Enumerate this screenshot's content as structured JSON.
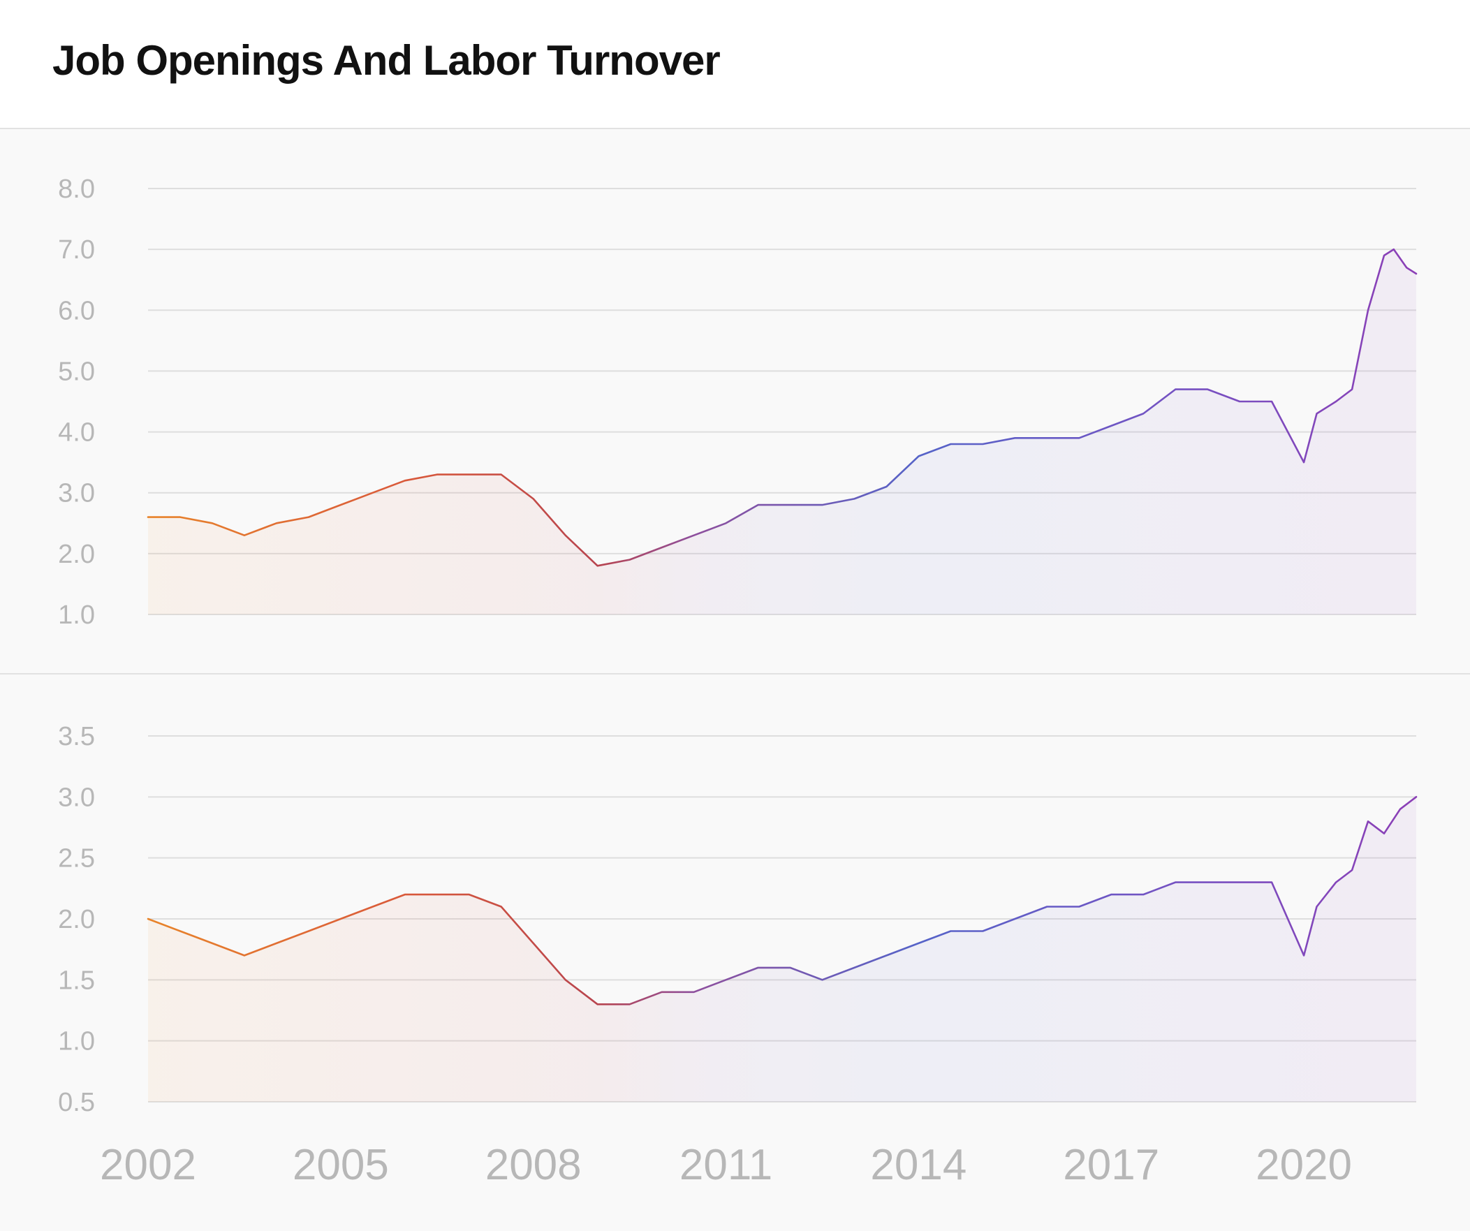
{
  "header": {
    "title": "Job Openings And Labor Turnover"
  },
  "colors": {
    "grid": "#dedede",
    "tick_text": "#b7b7b7",
    "gradient_stops": [
      {
        "year": 2002,
        "color": "#e8842a"
      },
      {
        "year": 2006,
        "color": "#d9593a"
      },
      {
        "year": 2009,
        "color": "#b8444e"
      },
      {
        "year": 2010.5,
        "color": "#8e4f9d"
      },
      {
        "year": 2014,
        "color": "#5563c8"
      },
      {
        "year": 2018,
        "color": "#7552c2"
      },
      {
        "year": 2021.7,
        "color": "#8b3fb6"
      }
    ]
  },
  "chart_data": [
    {
      "type": "line",
      "title": "",
      "xlabel": "",
      "ylabel": "",
      "xlim": [
        2002,
        2021.75
      ],
      "ylim": [
        1.0,
        8.0
      ],
      "yticks": [
        "8.0",
        "7.0",
        "6.0",
        "5.0",
        "4.0",
        "3.0",
        "2.0",
        "1.0"
      ],
      "grid": true,
      "area_fill": true,
      "series": [
        {
          "x": [
            2002,
            2002.5,
            2003,
            2003.5,
            2004,
            2004.5,
            2005,
            2005.5,
            2006,
            2006.5,
            2007,
            2007.5,
            2008,
            2008.5,
            2009,
            2009.5,
            2010,
            2010.5,
            2011,
            2011.5,
            2012,
            2012.5,
            2013,
            2013.5,
            2014,
            2014.5,
            2015,
            2015.5,
            2016,
            2016.5,
            2017,
            2017.5,
            2018,
            2018.5,
            2019,
            2019.5,
            2020,
            2020.2,
            2020.5,
            2020.75,
            2021,
            2021.25,
            2021.4,
            2021.6,
            2021.75
          ],
          "values": [
            2.6,
            2.6,
            2.5,
            2.3,
            2.5,
            2.6,
            2.8,
            3.0,
            3.2,
            3.3,
            3.3,
            3.3,
            2.9,
            2.3,
            1.8,
            1.9,
            2.1,
            2.3,
            2.5,
            2.8,
            2.8,
            2.8,
            2.9,
            3.1,
            3.6,
            3.8,
            3.8,
            3.9,
            3.9,
            3.9,
            4.1,
            4.3,
            4.7,
            4.7,
            4.5,
            4.5,
            3.5,
            4.3,
            4.5,
            4.7,
            6.0,
            6.9,
            7.0,
            6.7,
            6.6
          ]
        }
      ]
    },
    {
      "type": "line",
      "title": "",
      "xlabel": "",
      "ylabel": "",
      "xlim": [
        2002,
        2021.75
      ],
      "ylim": [
        0.5,
        3.5
      ],
      "yticks": [
        "3.5",
        "3.0",
        "2.5",
        "2.0",
        "1.5",
        "1.0",
        "0.5"
      ],
      "xticks": [
        "2002",
        "2005",
        "2008",
        "2011",
        "2014",
        "2017",
        "2020"
      ],
      "grid": true,
      "area_fill": true,
      "series": [
        {
          "x": [
            2002,
            2002.5,
            2003,
            2003.5,
            2004,
            2004.5,
            2005,
            2005.5,
            2006,
            2006.5,
            2007,
            2007.5,
            2008,
            2008.5,
            2009,
            2009.5,
            2010,
            2010.5,
            2011,
            2011.5,
            2012,
            2012.5,
            2013,
            2013.5,
            2014,
            2014.5,
            2015,
            2015.5,
            2016,
            2016.5,
            2017,
            2017.5,
            2018,
            2018.5,
            2019,
            2019.5,
            2020,
            2020.2,
            2020.5,
            2020.75,
            2021,
            2021.25,
            2021.5,
            2021.75
          ],
          "values": [
            2.0,
            1.9,
            1.8,
            1.7,
            1.8,
            1.9,
            2.0,
            2.1,
            2.2,
            2.2,
            2.2,
            2.1,
            1.8,
            1.5,
            1.3,
            1.3,
            1.4,
            1.4,
            1.5,
            1.6,
            1.6,
            1.5,
            1.6,
            1.7,
            1.8,
            1.9,
            1.9,
            2.0,
            2.1,
            2.1,
            2.2,
            2.2,
            2.3,
            2.3,
            2.3,
            2.3,
            1.7,
            2.1,
            2.3,
            2.4,
            2.8,
            2.7,
            2.9,
            3.0
          ]
        }
      ]
    }
  ]
}
